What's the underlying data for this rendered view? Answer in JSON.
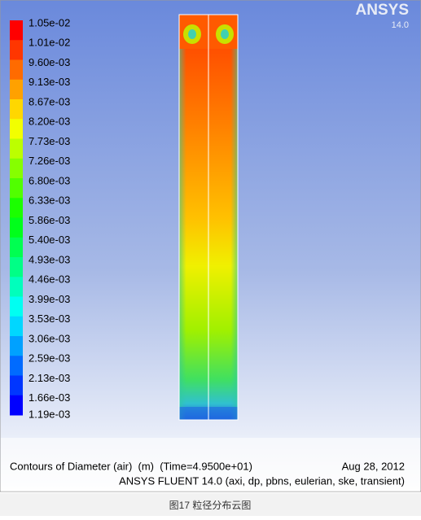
{
  "logo": {
    "name": "ANSYS",
    "version": "14.0"
  },
  "legend": {
    "labels": [
      "1.05e-02",
      "1.01e-02",
      "9.60e-03",
      "9.13e-03",
      "8.67e-03",
      "8.20e-03",
      "7.73e-03",
      "7.26e-03",
      "6.80e-03",
      "6.33e-03",
      "5.86e-03",
      "5.40e-03",
      "4.93e-03",
      "4.46e-03",
      "3.99e-03",
      "3.53e-03",
      "3.06e-03",
      "2.59e-03",
      "2.13e-03",
      "1.66e-03",
      "1.19e-03"
    ]
  },
  "footer": {
    "title": "Contours of Diameter (air)  (m)  (Time=4.9500e+01)",
    "date": "Aug 28, 2012",
    "solver": "ANSYS FLUENT 14.0 (axi, dp, pbns, eulerian, ske, transient)"
  },
  "caption": "图17 粒径分布云图"
}
